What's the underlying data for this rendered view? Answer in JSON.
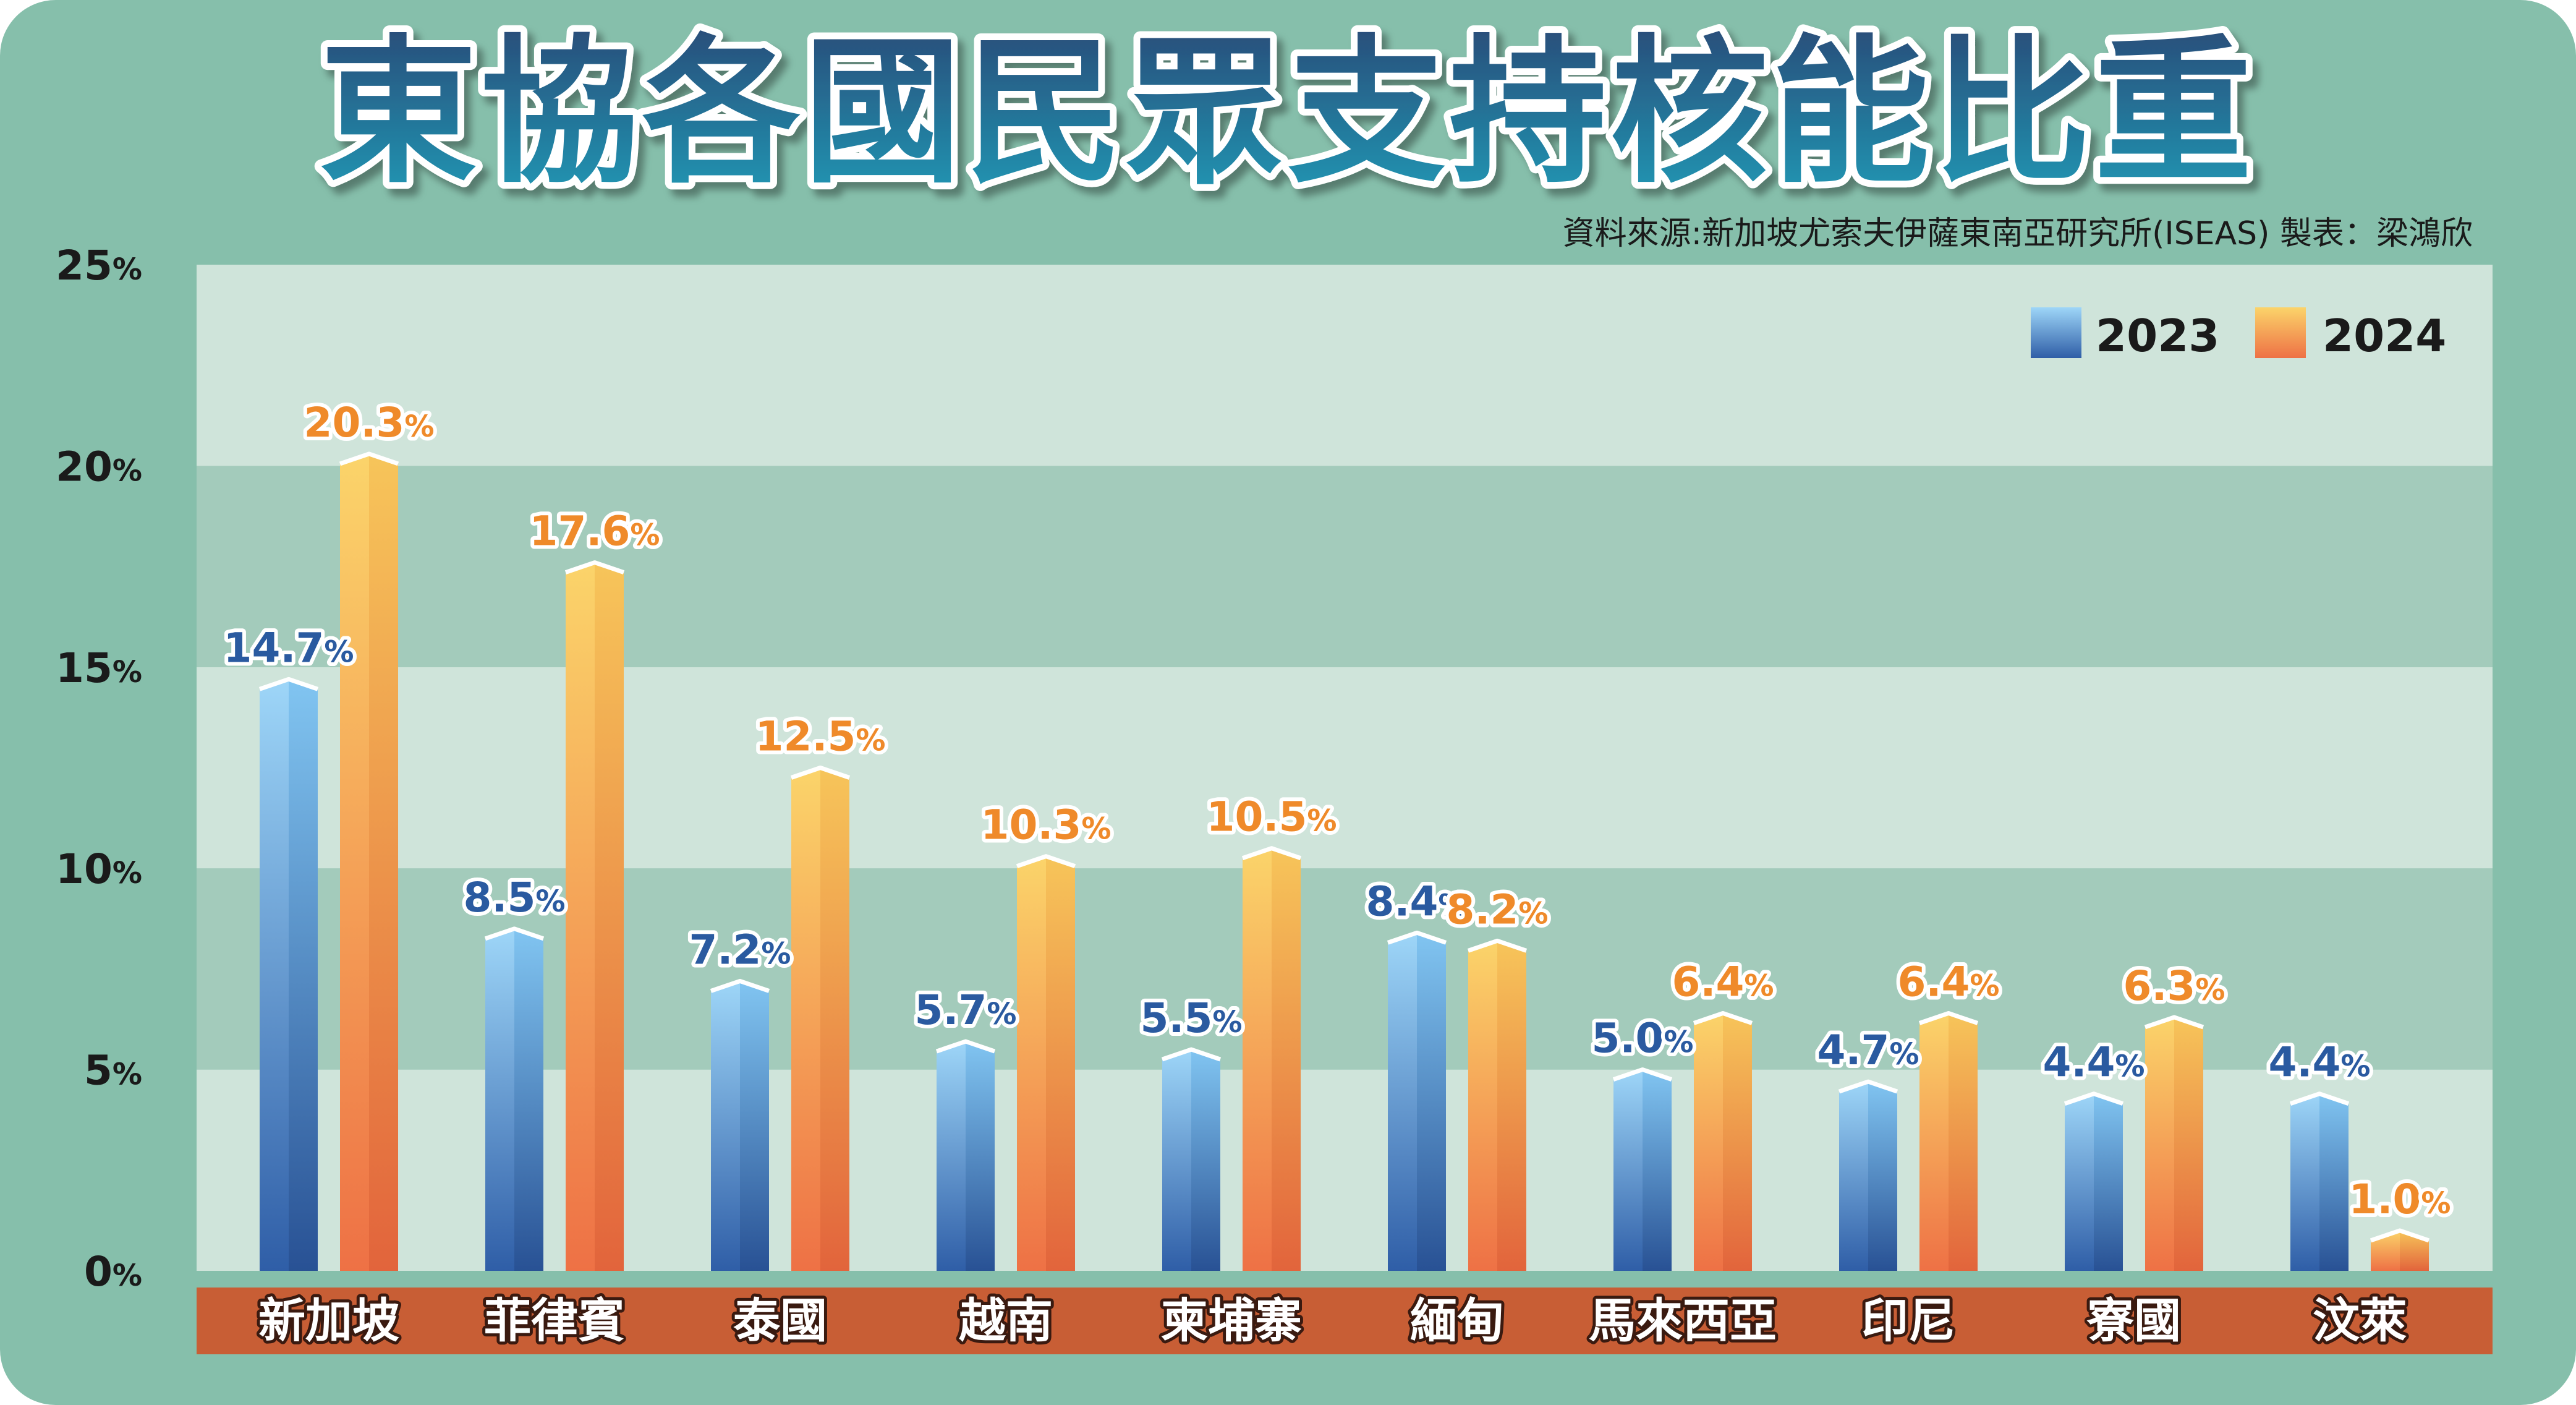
{
  "chart_data": {
    "type": "bar",
    "title": "東協各國民眾支持核能比重",
    "source": "資料來源:新加坡尤索夫伊薩東南亞研究所(ISEAS)  製表：梁鴻欣",
    "categories": [
      "新加坡",
      "菲律賓",
      "泰國",
      "越南",
      "柬埔寨",
      "緬甸",
      "馬來西亞",
      "印尼",
      "寮國",
      "汶萊"
    ],
    "series": [
      {
        "name": "2023",
        "values": [
          14.7,
          8.5,
          7.2,
          5.7,
          5.5,
          8.4,
          5.0,
          4.7,
          4.4,
          4.4
        ],
        "value_labels": [
          "14.7",
          "8.5",
          "7.2",
          "5.7",
          "5.5",
          "8.4",
          "5.0",
          "4.7",
          "4.4",
          "4.4"
        ]
      },
      {
        "name": "2024",
        "values": [
          20.3,
          17.6,
          12.5,
          10.3,
          10.5,
          8.2,
          6.4,
          6.4,
          6.3,
          1.0
        ],
        "value_labels": [
          "20.3",
          "17.6",
          "12.5",
          "10.3",
          "10.5",
          "8.2",
          "6.4",
          "6.4",
          "6.3",
          "1.0"
        ]
      }
    ],
    "value_suffix": "%",
    "ylim": [
      0,
      25
    ],
    "yticks": [
      "0",
      "5",
      "10",
      "15",
      "20",
      "25"
    ],
    "ytick_suffix": "%",
    "ylabel": "",
    "xlabel": "",
    "legend_position": "top-right",
    "grid": "alternating horizontal bands",
    "colors": {
      "frame": "#86bfab",
      "band_light": "#cfe4da",
      "band_dark": "#a3cbbb",
      "category_strip": "#c85e35",
      "series_2023_top": "#9ed6f8",
      "series_2023_bottom": "#2f5ea7",
      "series_2024_top": "#fbd46a",
      "series_2024_bottom": "#ee7145",
      "label_2023": "#2a5aa0",
      "label_2024": "#ef8a2a",
      "title_top": "#2a4b78",
      "title_bottom": "#1f9ab6"
    }
  }
}
